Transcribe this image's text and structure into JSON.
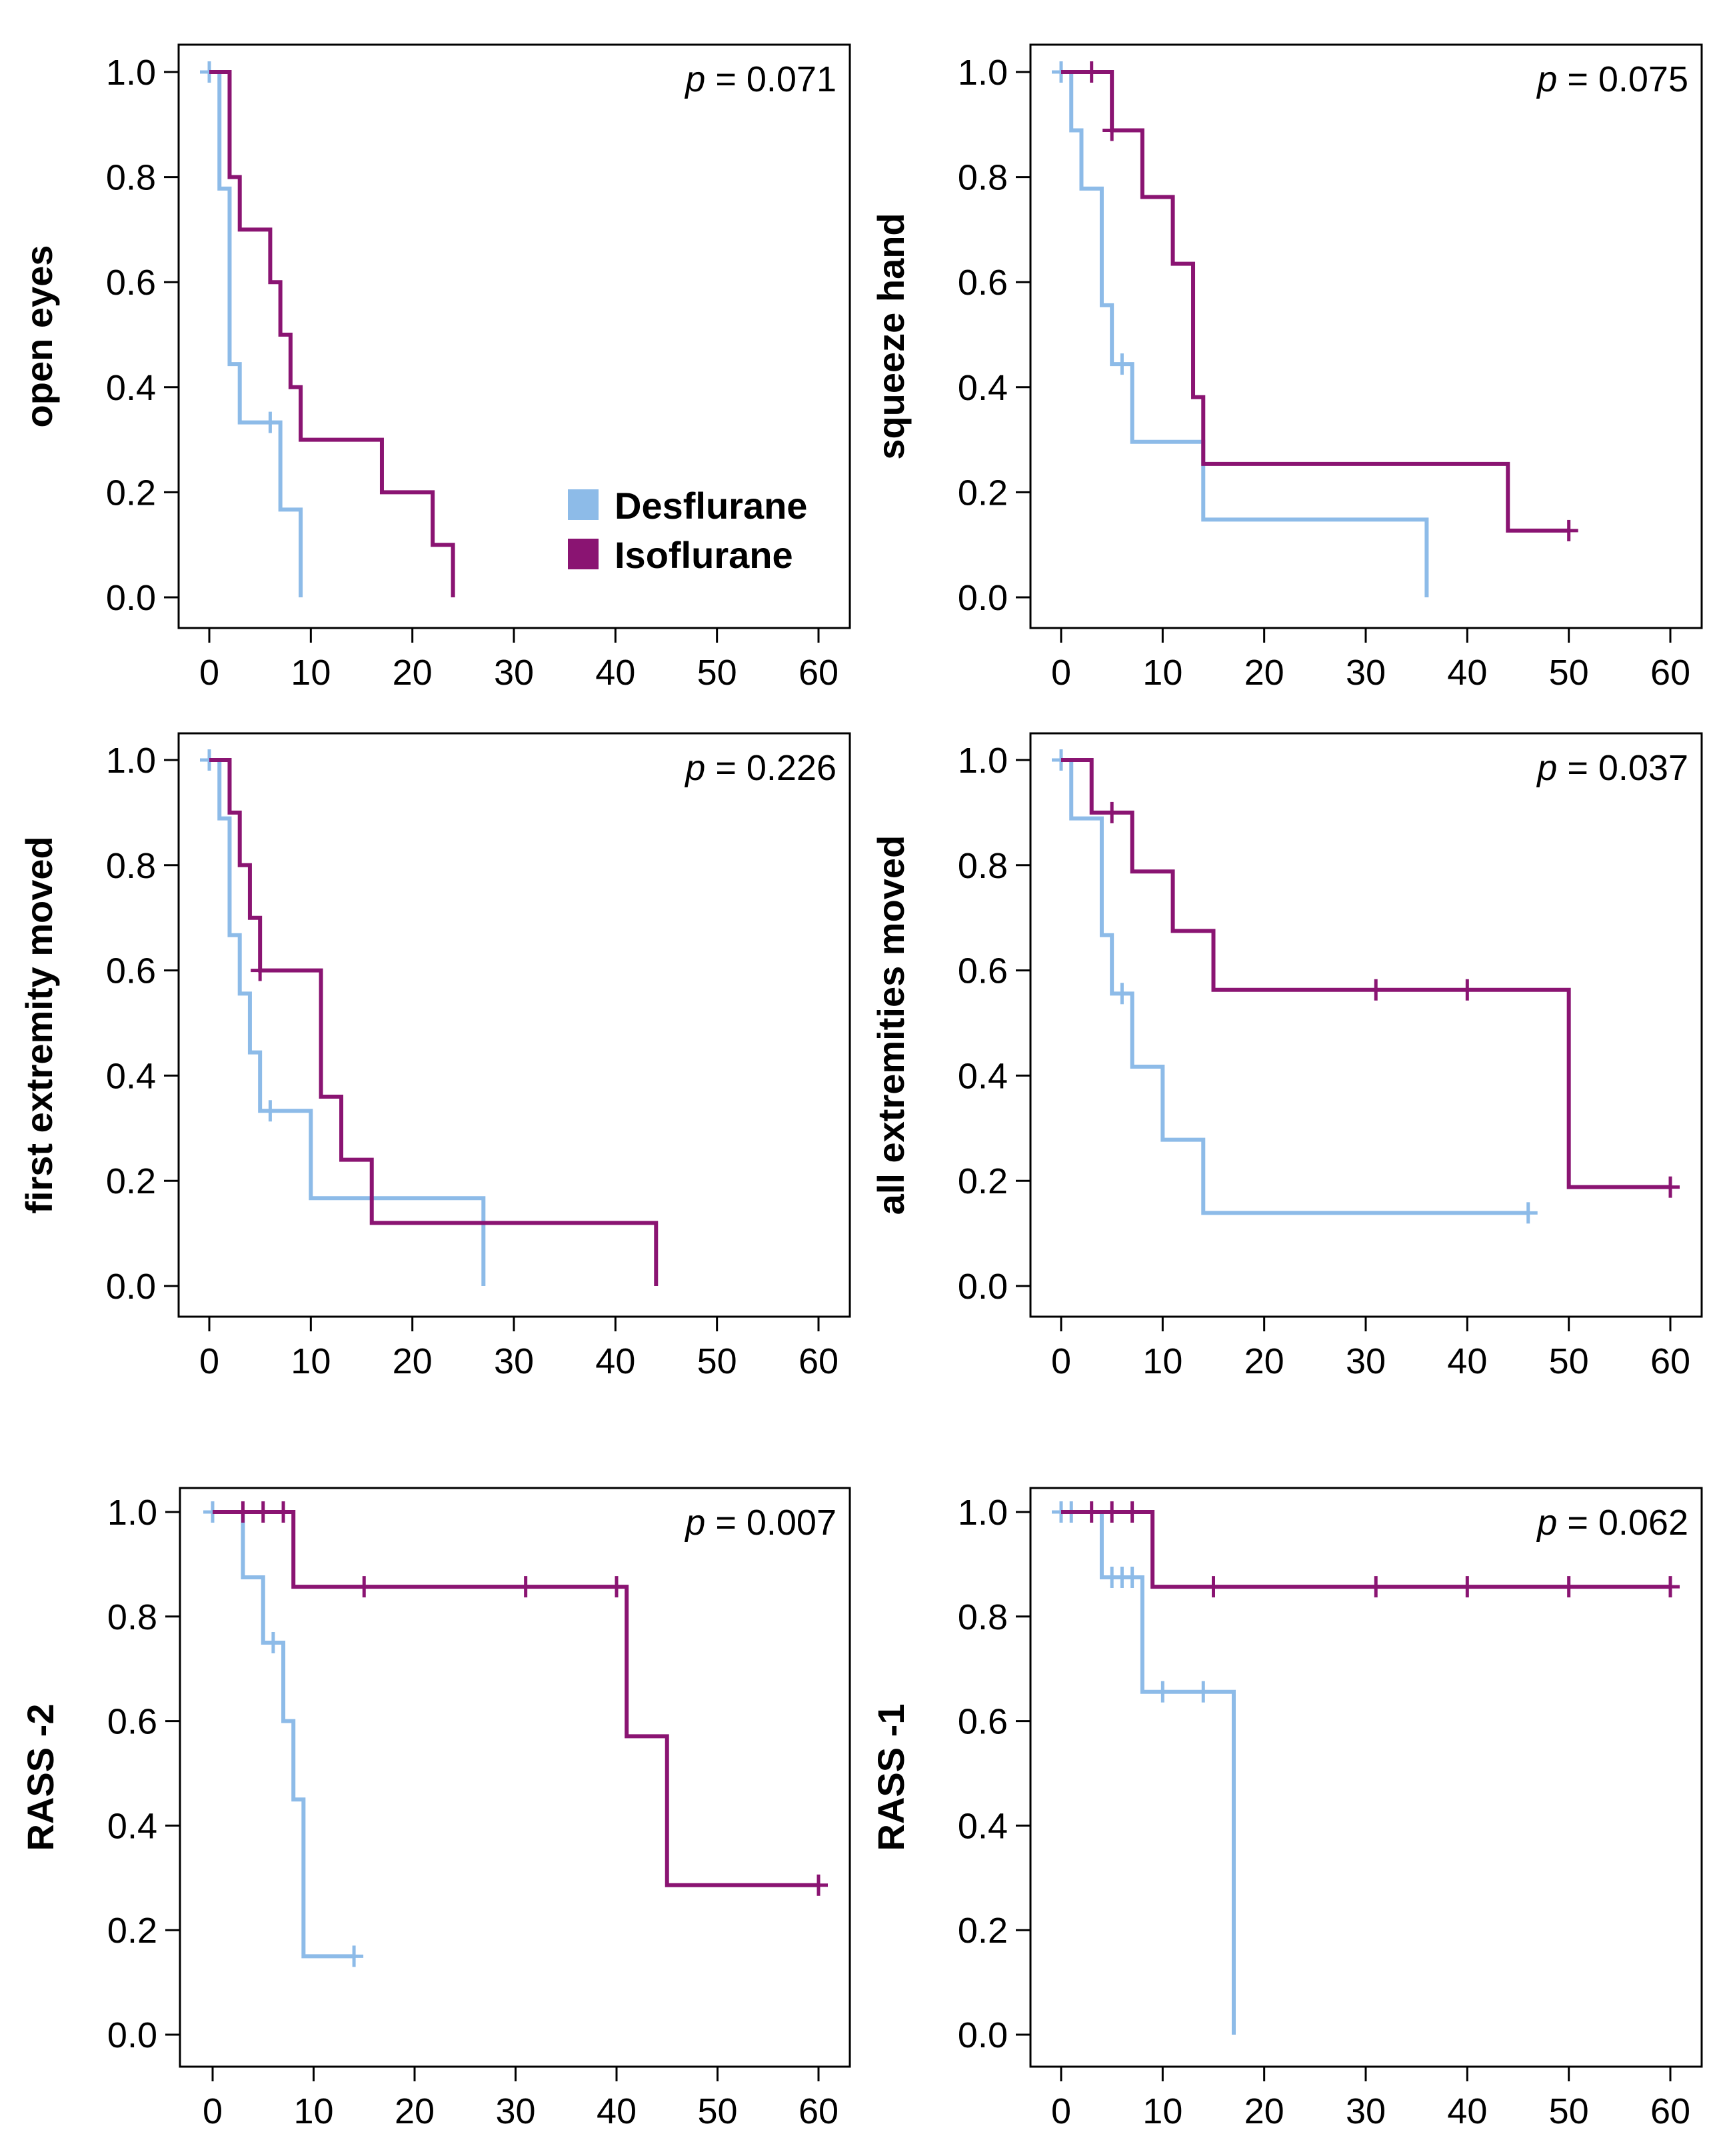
{
  "colors": {
    "desflurane": "#8dbbe8",
    "isoflurane": "#8a1472",
    "axis": "#000000"
  },
  "legend": [
    {
      "label": "Desflurane",
      "color_key": "desflurane"
    },
    {
      "label": "Isoflurane",
      "color_key": "isoflurane"
    }
  ],
  "chart_data": [
    {
      "type": "line",
      "subtype": "kaplan-meier",
      "ylabel": "open eyes",
      "p_label": "p",
      "p_text": " = 0.071",
      "xlim": [
        0,
        60
      ],
      "ylim": [
        0,
        1
      ],
      "xticks": [
        0,
        10,
        20,
        30,
        40,
        50,
        60
      ],
      "yticks": [
        "0.0",
        "0.2",
        "0.4",
        "0.6",
        "0.8",
        "1.0"
      ],
      "show_legend": true,
      "series": [
        {
          "name": "Desflurane",
          "color_key": "desflurane",
          "steps": [
            [
              0,
              1.0
            ],
            [
              1,
              0.778
            ],
            [
              2,
              0.444
            ],
            [
              3,
              0.333
            ],
            [
              7,
              0.167
            ],
            [
              9,
              0.0
            ]
          ],
          "end": 9,
          "censored": [
            [
              0,
              1.0
            ],
            [
              6,
              0.333
            ]
          ]
        },
        {
          "name": "Isoflurane",
          "color_key": "isoflurane",
          "steps": [
            [
              0,
              1.0
            ],
            [
              2,
              0.8
            ],
            [
              3,
              0.7
            ],
            [
              6,
              0.6
            ],
            [
              7,
              0.5
            ],
            [
              8,
              0.4
            ],
            [
              9,
              0.3
            ],
            [
              17,
              0.2
            ],
            [
              22,
              0.1
            ],
            [
              24,
              0.0
            ]
          ],
          "end": 24,
          "censored": []
        }
      ]
    },
    {
      "type": "line",
      "subtype": "kaplan-meier",
      "ylabel": "squeeze hand",
      "p_label": "p",
      "p_text": " = 0.075",
      "xlim": [
        0,
        60
      ],
      "ylim": [
        0,
        1
      ],
      "xticks": [
        0,
        10,
        20,
        30,
        40,
        50,
        60
      ],
      "yticks": [
        "0.0",
        "0.2",
        "0.4",
        "0.6",
        "0.8",
        "1.0"
      ],
      "show_legend": false,
      "series": [
        {
          "name": "Desflurane",
          "color_key": "desflurane",
          "steps": [
            [
              0,
              1.0
            ],
            [
              1,
              0.889
            ],
            [
              2,
              0.778
            ],
            [
              4,
              0.556
            ],
            [
              5,
              0.444
            ],
            [
              7,
              0.296
            ],
            [
              14,
              0.148
            ],
            [
              36,
              0.0
            ]
          ],
          "end": 36,
          "censored": [
            [
              0,
              1.0
            ],
            [
              6,
              0.444
            ]
          ]
        },
        {
          "name": "Isoflurane",
          "color_key": "isoflurane",
          "steps": [
            [
              0,
              1.0
            ],
            [
              5,
              0.889
            ],
            [
              8,
              0.762
            ],
            [
              11,
              0.635
            ],
            [
              13,
              0.381
            ],
            [
              14,
              0.254
            ],
            [
              44,
              0.127
            ]
          ],
          "end": 50,
          "censored": [
            [
              3,
              1.0
            ],
            [
              5,
              0.889
            ],
            [
              50,
              0.127
            ]
          ]
        }
      ]
    },
    {
      "type": "line",
      "subtype": "kaplan-meier",
      "ylabel": "first extremity moved",
      "p_label": "p",
      "p_text": " = 0.226",
      "xlim": [
        0,
        60
      ],
      "ylim": [
        0,
        1
      ],
      "xticks": [
        0,
        10,
        20,
        30,
        40,
        50,
        60
      ],
      "yticks": [
        "0.0",
        "0.2",
        "0.4",
        "0.6",
        "0.8",
        "1.0"
      ],
      "show_legend": false,
      "series": [
        {
          "name": "Desflurane",
          "color_key": "desflurane",
          "steps": [
            [
              0,
              1.0
            ],
            [
              1,
              0.889
            ],
            [
              2,
              0.667
            ],
            [
              3,
              0.556
            ],
            [
              4,
              0.444
            ],
            [
              5,
              0.333
            ],
            [
              10,
              0.167
            ],
            [
              27,
              0.0
            ]
          ],
          "end": 27,
          "censored": [
            [
              0,
              1.0
            ],
            [
              6,
              0.333
            ]
          ]
        },
        {
          "name": "Isoflurane",
          "color_key": "isoflurane",
          "steps": [
            [
              0,
              1.0
            ],
            [
              2,
              0.9
            ],
            [
              3,
              0.8
            ],
            [
              4,
              0.7
            ],
            [
              5,
              0.6
            ],
            [
              11,
              0.36
            ],
            [
              13,
              0.24
            ],
            [
              16,
              0.12
            ],
            [
              44,
              0.0
            ]
          ],
          "end": 44,
          "censored": [
            [
              5,
              0.6
            ]
          ]
        }
      ]
    },
    {
      "type": "line",
      "subtype": "kaplan-meier",
      "ylabel": "all extremities moved",
      "p_label": "p",
      "p_text": " = 0.037",
      "xlim": [
        0,
        60
      ],
      "ylim": [
        0,
        1
      ],
      "xticks": [
        0,
        10,
        20,
        30,
        40,
        50,
        60
      ],
      "yticks": [
        "0.0",
        "0.2",
        "0.4",
        "0.6",
        "0.8",
        "1.0"
      ],
      "show_legend": false,
      "series": [
        {
          "name": "Desflurane",
          "color_key": "desflurane",
          "steps": [
            [
              0,
              1.0
            ],
            [
              1,
              0.889
            ],
            [
              4,
              0.667
            ],
            [
              5,
              0.556
            ],
            [
              7,
              0.417
            ],
            [
              10,
              0.278
            ],
            [
              14,
              0.139
            ]
          ],
          "end": 46,
          "censored": [
            [
              0,
              1.0
            ],
            [
              6,
              0.556
            ],
            [
              46,
              0.139
            ]
          ]
        },
        {
          "name": "Isoflurane",
          "color_key": "isoflurane",
          "steps": [
            [
              0,
              1.0
            ],
            [
              3,
              0.9
            ],
            [
              7,
              0.788
            ],
            [
              11,
              0.675
            ],
            [
              15,
              0.563
            ],
            [
              50,
              0.188
            ]
          ],
          "end": 60,
          "censored": [
            [
              5,
              0.9
            ],
            [
              31,
              0.563
            ],
            [
              40,
              0.563
            ],
            [
              60,
              0.188
            ]
          ]
        }
      ]
    },
    {
      "type": "line",
      "subtype": "kaplan-meier",
      "ylabel": "RASS -2",
      "p_label": "p",
      "p_text": " = 0.007",
      "xlim": [
        0,
        60
      ],
      "ylim": [
        0,
        1
      ],
      "xticks": [
        0,
        10,
        20,
        30,
        40,
        50,
        60
      ],
      "yticks": [
        "0.0",
        "0.2",
        "0.4",
        "0.6",
        "0.8",
        "1.0"
      ],
      "show_legend": false,
      "series": [
        {
          "name": "Desflurane",
          "color_key": "desflurane",
          "steps": [
            [
              0,
              1.0
            ],
            [
              3,
              0.875
            ],
            [
              5,
              0.75
            ],
            [
              7,
              0.6
            ],
            [
              8,
              0.45
            ],
            [
              9,
              0.15
            ]
          ],
          "end": 14,
          "censored": [
            [
              0,
              1.0
            ],
            [
              6,
              0.75
            ],
            [
              14,
              0.15
            ]
          ]
        },
        {
          "name": "Isoflurane",
          "color_key": "isoflurane",
          "steps": [
            [
              0,
              1.0
            ],
            [
              8,
              0.857
            ],
            [
              41,
              0.571
            ],
            [
              45,
              0.286
            ]
          ],
          "end": 60,
          "censored": [
            [
              3,
              1.0
            ],
            [
              5,
              1.0
            ],
            [
              7,
              1.0
            ],
            [
              15,
              0.857
            ],
            [
              31,
              0.857
            ],
            [
              40,
              0.857
            ],
            [
              60,
              0.286
            ]
          ]
        }
      ]
    },
    {
      "type": "line",
      "subtype": "kaplan-meier",
      "ylabel": "RASS -1",
      "p_label": "p",
      "p_text": " = 0.062",
      "xlim": [
        0,
        60
      ],
      "ylim": [
        0,
        1
      ],
      "xticks": [
        0,
        10,
        20,
        30,
        40,
        50,
        60
      ],
      "yticks": [
        "0.0",
        "0.2",
        "0.4",
        "0.6",
        "0.8",
        "1.0"
      ],
      "show_legend": false,
      "series": [
        {
          "name": "Desflurane",
          "color_key": "desflurane",
          "steps": [
            [
              0,
              1.0
            ],
            [
              4,
              0.875
            ],
            [
              8,
              0.656
            ],
            [
              17,
              0.0
            ]
          ],
          "end": 17,
          "censored": [
            [
              0,
              1.0
            ],
            [
              1,
              1.0
            ],
            [
              5,
              0.875
            ],
            [
              6,
              0.875
            ],
            [
              7,
              0.875
            ],
            [
              10,
              0.656
            ],
            [
              14,
              0.656
            ]
          ]
        },
        {
          "name": "Isoflurane",
          "color_key": "isoflurane",
          "steps": [
            [
              0,
              1.0
            ],
            [
              9,
              0.857
            ]
          ],
          "end": 60,
          "censored": [
            [
              3,
              1.0
            ],
            [
              5,
              1.0
            ],
            [
              7,
              1.0
            ],
            [
              15,
              0.857
            ],
            [
              31,
              0.857
            ],
            [
              40,
              0.857
            ],
            [
              50,
              0.857
            ],
            [
              60,
              0.857
            ]
          ]
        }
      ]
    }
  ]
}
